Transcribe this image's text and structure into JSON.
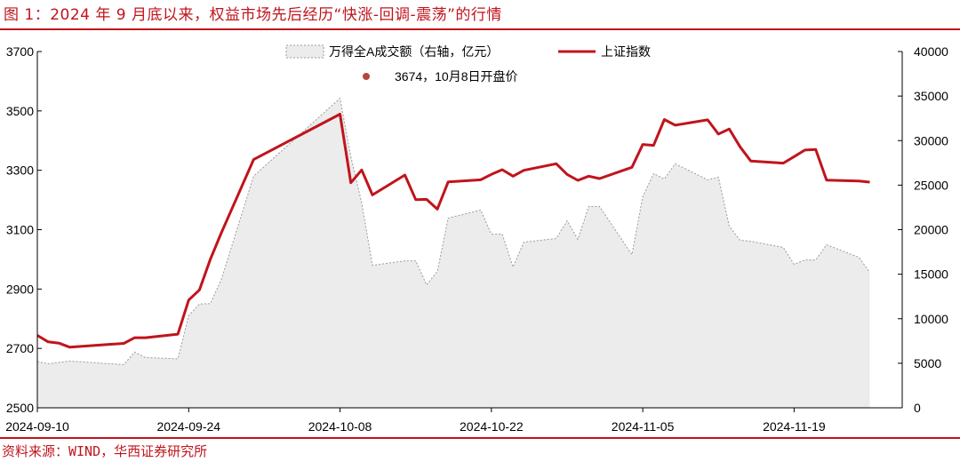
{
  "header": {
    "title": "图 1：2024 年 9 月底以来，权益市场先后经历“快涨-回调-震荡”的行情"
  },
  "footer": {
    "source": "资料来源：WIND，华西证券研究所"
  },
  "colors": {
    "accent": "#c0141c",
    "area_fill": "#ececec",
    "area_stroke": "#9a9a9a",
    "marker": "#b5463c"
  },
  "chart_data": {
    "type": "line",
    "x_ticks": [
      "2024-09-10",
      "2024-09-24",
      "2024-10-08",
      "2024-10-22",
      "2024-11-05",
      "2024-11-19"
    ],
    "x_range": [
      "2024-09-10",
      "2024-11-29"
    ],
    "y_left": {
      "range": [
        2500,
        3700
      ],
      "ticks": [
        "2500",
        "2700",
        "2900",
        "3100",
        "3300",
        "3500",
        "3700"
      ]
    },
    "y_right": {
      "range": [
        0,
        40000
      ],
      "ticks": [
        "0",
        "5000",
        "10000",
        "15000",
        "20000",
        "25000",
        "30000",
        "35000",
        "40000"
      ]
    },
    "legend": {
      "area": "万得全A成交额（右轴，亿元）",
      "line": "上证指数",
      "marker": "3674，10月8日开盘价"
    },
    "series": [
      {
        "name": "上证指数",
        "axis": "left",
        "kind": "line",
        "points": [
          [
            "2024-09-10",
            2744
          ],
          [
            "2024-09-11",
            2722
          ],
          [
            "2024-09-12",
            2718
          ],
          [
            "2024-09-13",
            2704
          ],
          [
            "2024-09-18",
            2717
          ],
          [
            "2024-09-19",
            2736
          ],
          [
            "2024-09-20",
            2736
          ],
          [
            "2024-09-23",
            2748
          ],
          [
            "2024-09-24",
            2863
          ],
          [
            "2024-09-25",
            2897
          ],
          [
            "2024-09-26",
            3000
          ],
          [
            "2024-09-27",
            3088
          ],
          [
            "2024-09-30",
            3336
          ],
          [
            "2024-10-08",
            3489
          ],
          [
            "2024-10-09",
            3258
          ],
          [
            "2024-10-10",
            3301
          ],
          [
            "2024-10-11",
            3217
          ],
          [
            "2024-10-14",
            3284
          ],
          [
            "2024-10-15",
            3201
          ],
          [
            "2024-10-16",
            3202
          ],
          [
            "2024-10-17",
            3169
          ],
          [
            "2024-10-18",
            3261
          ],
          [
            "2024-10-21",
            3268
          ],
          [
            "2024-10-22",
            3286
          ],
          [
            "2024-10-23",
            3302
          ],
          [
            "2024-10-24",
            3280
          ],
          [
            "2024-10-25",
            3300
          ],
          [
            "2024-10-28",
            3322
          ],
          [
            "2024-10-29",
            3286
          ],
          [
            "2024-10-30",
            3266
          ],
          [
            "2024-10-31",
            3280
          ],
          [
            "2024-11-01",
            3272
          ],
          [
            "2024-11-04",
            3310
          ],
          [
            "2024-11-05",
            3387
          ],
          [
            "2024-11-06",
            3384
          ],
          [
            "2024-11-07",
            3471
          ],
          [
            "2024-11-08",
            3452
          ],
          [
            "2024-11-11",
            3470
          ],
          [
            "2024-11-12",
            3422
          ],
          [
            "2024-11-13",
            3439
          ],
          [
            "2024-11-14",
            3379
          ],
          [
            "2024-11-15",
            3331
          ],
          [
            "2024-11-18",
            3324
          ],
          [
            "2024-11-19",
            3346
          ],
          [
            "2024-11-20",
            3368
          ],
          [
            "2024-11-21",
            3370
          ],
          [
            "2024-11-22",
            3267
          ],
          [
            "2024-11-25",
            3264
          ],
          [
            "2024-11-26",
            3260
          ]
        ]
      },
      {
        "name": "万得全A成交额（右轴，亿元）",
        "axis": "right",
        "kind": "area",
        "points": [
          [
            "2024-09-10",
            5200
          ],
          [
            "2024-09-11",
            4950
          ],
          [
            "2024-09-13",
            5250
          ],
          [
            "2024-09-18",
            4850
          ],
          [
            "2024-09-19",
            6250
          ],
          [
            "2024-09-20",
            5650
          ],
          [
            "2024-09-23",
            5500
          ],
          [
            "2024-09-24",
            10350
          ],
          [
            "2024-09-25",
            11650
          ],
          [
            "2024-09-26",
            11700
          ],
          [
            "2024-09-27",
            14350
          ],
          [
            "2024-09-30",
            26000
          ],
          [
            "2024-10-08",
            34750
          ],
          [
            "2024-10-09",
            28200
          ],
          [
            "2024-10-10",
            23000
          ],
          [
            "2024-10-11",
            16000
          ],
          [
            "2024-10-14",
            16500
          ],
          [
            "2024-10-15",
            16500
          ],
          [
            "2024-10-16",
            13800
          ],
          [
            "2024-10-17",
            15300
          ],
          [
            "2024-10-18",
            21300
          ],
          [
            "2024-10-21",
            22200
          ],
          [
            "2024-10-22",
            19500
          ],
          [
            "2024-10-23",
            19500
          ],
          [
            "2024-10-24",
            15800
          ],
          [
            "2024-10-25",
            18600
          ],
          [
            "2024-10-28",
            19000
          ],
          [
            "2024-10-29",
            21000
          ],
          [
            "2024-10-30",
            18900
          ],
          [
            "2024-10-31",
            22600
          ],
          [
            "2024-11-01",
            22600
          ],
          [
            "2024-11-04",
            17200
          ],
          [
            "2024-11-05",
            23700
          ],
          [
            "2024-11-06",
            26300
          ],
          [
            "2024-11-07",
            25700
          ],
          [
            "2024-11-08",
            27400
          ],
          [
            "2024-11-11",
            25600
          ],
          [
            "2024-11-12",
            25900
          ],
          [
            "2024-11-13",
            20400
          ],
          [
            "2024-11-14",
            18800
          ],
          [
            "2024-11-15",
            18700
          ],
          [
            "2024-11-18",
            18000
          ],
          [
            "2024-11-19",
            16100
          ],
          [
            "2024-11-20",
            16600
          ],
          [
            "2024-11-21",
            16600
          ],
          [
            "2024-11-22",
            18300
          ],
          [
            "2024-11-25",
            16900
          ],
          [
            "2024-11-26",
            15200
          ]
        ]
      }
    ]
  }
}
